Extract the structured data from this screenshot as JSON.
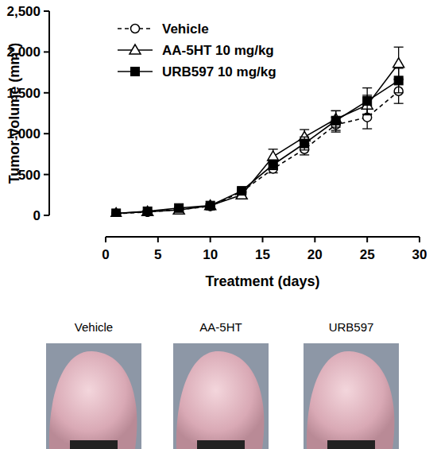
{
  "chart_data": {
    "type": "line",
    "x_label": "Treatment (days)",
    "y_label": "Tumor volume (mm³)",
    "x": [
      1,
      4,
      7,
      10,
      13,
      16,
      19,
      22,
      25,
      28
    ],
    "series": [
      {
        "name": "Vehicle",
        "color": "#000000",
        "marker": "circle",
        "line_style": "dashed",
        "values": [
          20,
          40,
          70,
          110,
          290,
          570,
          810,
          1110,
          1200,
          1520
        ],
        "errors": [
          8,
          10,
          12,
          20,
          30,
          50,
          70,
          90,
          140,
          150
        ]
      },
      {
        "name": "AA-5HT 10 mg/kg",
        "color": "#000000",
        "marker": "triangle",
        "line_style": "solid",
        "values": [
          25,
          45,
          65,
          120,
          250,
          720,
          960,
          1180,
          1350,
          1860
        ],
        "errors": [
          8,
          10,
          12,
          20,
          30,
          90,
          90,
          100,
          120,
          200
        ]
      },
      {
        "name": "URB597 10 mg/kg",
        "color": "#000000",
        "marker": "square",
        "line_style": "solid",
        "values": [
          25,
          50,
          90,
          120,
          300,
          620,
          880,
          1160,
          1400,
          1650
        ],
        "errors": [
          8,
          10,
          12,
          20,
          30,
          60,
          80,
          120,
          160,
          150
        ]
      }
    ],
    "xlim": [
      0,
      30
    ],
    "xticks": [
      0,
      5,
      10,
      15,
      20,
      25,
      30
    ],
    "ylim": [
      0,
      2500
    ],
    "yticks": [
      0,
      500,
      {
        "value": 1000,
        "label": "1,000"
      },
      {
        "value": 1500,
        "label": "1,500"
      },
      {
        "value": 2000,
        "label": "2,000"
      },
      {
        "value": 2500,
        "label": "2,500"
      }
    ],
    "grid": false,
    "legend": "top-left"
  },
  "photos": {
    "labels": [
      "Vehicle",
      "AA-5HT",
      "URB597"
    ]
  }
}
